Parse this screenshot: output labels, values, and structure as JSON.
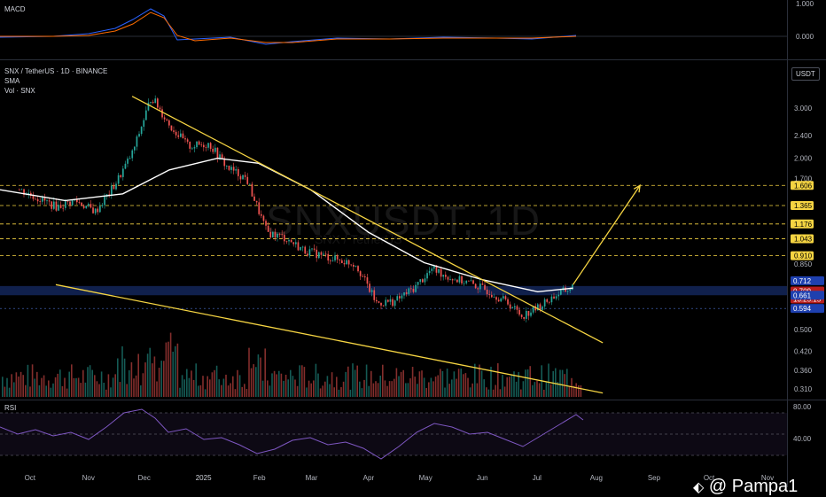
{
  "title": "SNX / TetherUS · 1D · BINANCE",
  "indicators": [
    "SMA",
    "Vol · SNX"
  ],
  "quote_currency": "USDT",
  "watermark": "SNXUSDT, 1D",
  "watermark_sub": "SNX / TetherUS",
  "author": "@ Pampa1",
  "macd_panel": {
    "label": "MACD",
    "ticks": [
      "1.000",
      "0.000"
    ]
  },
  "rsi_panel": {
    "label": "RSI",
    "ticks": [
      "80.00",
      "40.00"
    ]
  },
  "colors": {
    "up": "#26a69a",
    "down": "#ef5350",
    "trendline": "#f5d442",
    "sma": "#ffffff",
    "zone": "#1e3a8a",
    "level": "#f5d442"
  },
  "chart_data": {
    "type": "candlestick",
    "title": "SNX / TetherUS · 1D · BINANCE",
    "y_scale": "log",
    "yticks": [
      "3.000",
      "2.400",
      "2.000",
      "1.700",
      "0.850",
      "0.500",
      "0.420",
      "0.360",
      "0.310"
    ],
    "x_tick_labels": [
      "Oct",
      "Nov",
      "Dec",
      "2025",
      "Feb",
      "Mar",
      "Apr",
      "May",
      "Jun",
      "Jul",
      "Aug",
      "Sep",
      "Oct",
      "Nov"
    ],
    "price_levels": [
      {
        "value": 1.606,
        "label": "1.606"
      },
      {
        "value": 1.365,
        "label": "1.365"
      },
      {
        "value": 1.176,
        "label": "1.176"
      },
      {
        "value": 1.043,
        "label": "1.043"
      },
      {
        "value": 0.91,
        "label": "0.910"
      }
    ],
    "price_tags": [
      {
        "value": 0.712,
        "label": "0.712",
        "style": "blue"
      },
      {
        "value": 0.709,
        "label": "0.709",
        "style": "red",
        "countdown": "13:25:15"
      },
      {
        "value": 0.661,
        "label": "0.661",
        "style": "blue"
      },
      {
        "value": 0.594,
        "label": "0.594",
        "style": "blue"
      }
    ],
    "support_zone": [
      0.661,
      0.712
    ],
    "trendlines": [
      {
        "name": "upper",
        "from": [
          "2024-11-25",
          3.3
        ],
        "to": [
          "2025-08-05",
          0.45
        ]
      },
      {
        "name": "lower",
        "from": [
          "2024-10-15",
          0.72
        ],
        "to": [
          "2025-08-05",
          0.3
        ]
      }
    ],
    "projection": {
      "from": [
        "2025-07-20",
        0.72
      ],
      "to": [
        "2025-08-25",
        1.606
      ]
    },
    "close_path": [
      [
        "2024-09-25",
        1.55
      ],
      [
        "2024-10-05",
        1.45
      ],
      [
        "2024-10-15",
        1.35
      ],
      [
        "2024-10-25",
        1.42
      ],
      [
        "2024-11-05",
        1.3
      ],
      [
        "2024-11-15",
        1.6
      ],
      [
        "2024-11-25",
        2.1
      ],
      [
        "2024-12-05",
        3.3
      ],
      [
        "2024-12-15",
        2.6
      ],
      [
        "2024-12-25",
        2.2
      ],
      [
        "2025-01-05",
        2.25
      ],
      [
        "2025-01-15",
        1.85
      ],
      [
        "2025-01-25",
        1.7
      ],
      [
        "2025-02-05",
        1.1
      ],
      [
        "2025-02-15",
        1.05
      ],
      [
        "2025-02-25",
        0.95
      ],
      [
        "2025-03-05",
        0.92
      ],
      [
        "2025-03-15",
        0.88
      ],
      [
        "2025-03-25",
        0.85
      ],
      [
        "2025-04-05",
        0.62
      ],
      [
        "2025-04-15",
        0.63
      ],
      [
        "2025-04-25",
        0.7
      ],
      [
        "2025-05-05",
        0.82
      ],
      [
        "2025-05-15",
        0.76
      ],
      [
        "2025-05-25",
        0.73
      ],
      [
        "2025-06-05",
        0.68
      ],
      [
        "2025-06-15",
        0.62
      ],
      [
        "2025-06-22",
        0.56
      ],
      [
        "2025-07-01",
        0.6
      ],
      [
        "2025-07-10",
        0.66
      ],
      [
        "2025-07-20",
        0.709
      ]
    ]
  }
}
